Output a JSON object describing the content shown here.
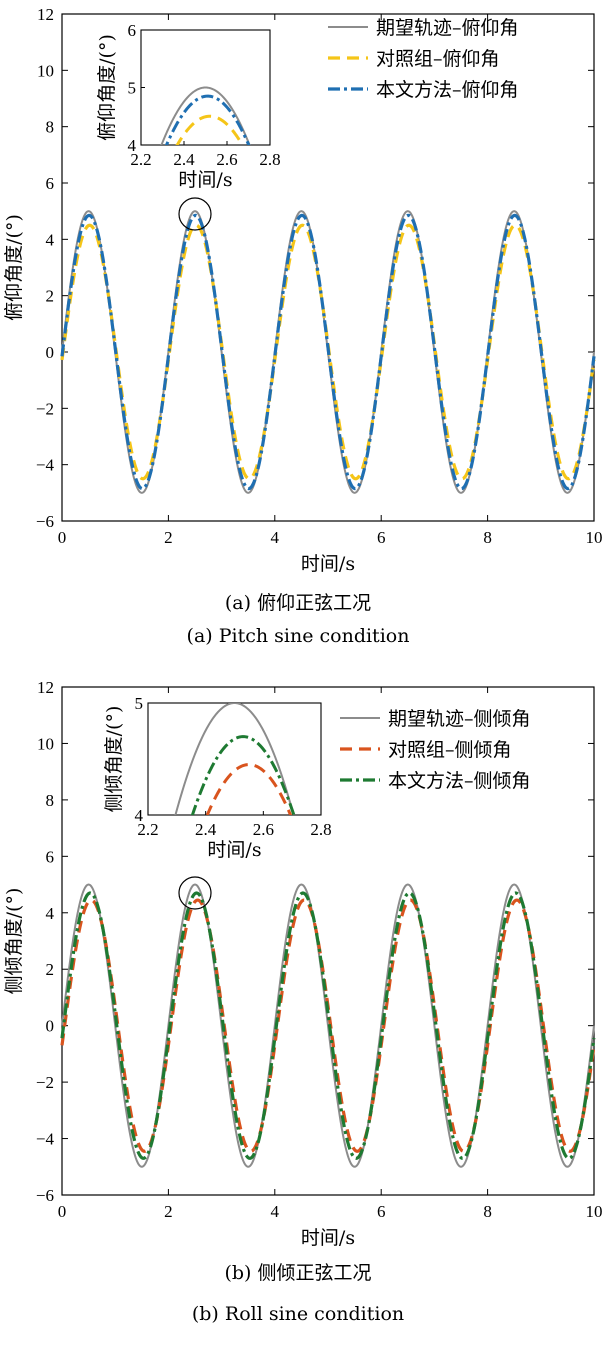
{
  "charts": [
    {
      "type": "line",
      "ylabel": "俯仰角度/(°)",
      "xlabel": "时间/s",
      "xlim": [
        0,
        10
      ],
      "ylim": [
        -6,
        12
      ],
      "xticks": [
        "0",
        "2",
        "4",
        "6",
        "8",
        "10"
      ],
      "yticks": [
        "−6",
        "−4",
        "−2",
        "0",
        "2",
        "4",
        "6",
        "8",
        "10",
        "12"
      ],
      "legend_position": "top-right",
      "caption_cn": "(a) 俯仰正弦工况",
      "caption_en": "(a) Pitch sine condition",
      "series": [
        {
          "name": "期望轨迹–俯仰角",
          "amplitude": 5.0,
          "phase_delay_s": 0.0,
          "color": "#8c8c8c",
          "style": "solid"
        },
        {
          "name": "对照组–俯仰角",
          "amplitude": 4.5,
          "phase_delay_s": 0.02,
          "color": "#f5c518",
          "style": "dash"
        },
        {
          "name": "本文方法–俯仰角",
          "amplitude": 4.85,
          "phase_delay_s": 0.01,
          "color": "#1f6fb2",
          "style": "dashdot"
        }
      ],
      "annotation_circle": {
        "x": 2.5,
        "y": 4.9
      },
      "inset": {
        "xlabel": "时间/s",
        "ylabel": "俯仰角度/(°)",
        "xlim": [
          2.2,
          2.8
        ],
        "ylim": [
          4,
          6
        ],
        "xticks": [
          "2.2",
          "2.4",
          "2.6",
          "2.8"
        ],
        "yticks": [
          "4",
          "5",
          "6"
        ]
      }
    },
    {
      "type": "line",
      "ylabel": "侧倾角度/(°)",
      "xlabel": "时间/s",
      "xlim": [
        0,
        10
      ],
      "ylim": [
        -6,
        12
      ],
      "xticks": [
        "0",
        "2",
        "4",
        "6",
        "8",
        "10"
      ],
      "yticks": [
        "−6",
        "−4",
        "−2",
        "0",
        "2",
        "4",
        "6",
        "8",
        "10",
        "12"
      ],
      "legend_position": "top-right",
      "caption_cn": "(b) 侧倾正弦工况",
      "caption_en": "(b) Roll sine condition",
      "series": [
        {
          "name": "期望轨迹–侧倾角",
          "amplitude": 5.0,
          "phase_delay_s": 0.0,
          "color": "#8c8c8c",
          "style": "solid"
        },
        {
          "name": "对照组–侧倾角",
          "amplitude": 4.45,
          "phase_delay_s": 0.05,
          "color": "#d9541e",
          "style": "dash"
        },
        {
          "name": "本文方法–侧倾角",
          "amplitude": 4.7,
          "phase_delay_s": 0.03,
          "color": "#1e7a32",
          "style": "dashdot"
        }
      ],
      "annotation_circle": {
        "x": 2.5,
        "y": 4.7
      },
      "inset": {
        "xlabel": "时间/s",
        "ylabel": "侧倾角度/(°)",
        "xlim": [
          2.2,
          2.8
        ],
        "ylim": [
          4,
          5
        ],
        "xticks": [
          "2.2",
          "2.4",
          "2.6",
          "2.8"
        ],
        "yticks": [
          "4",
          "5"
        ]
      }
    }
  ]
}
